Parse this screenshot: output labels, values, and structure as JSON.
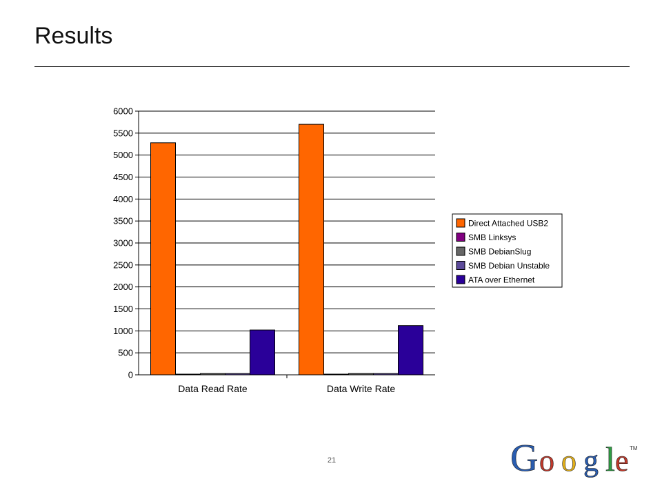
{
  "slide": {
    "title": "Results",
    "page_number": "21"
  },
  "logo": {
    "wordmark": "Google",
    "trademark": "TM",
    "letter_colors": [
      "#2a5db0",
      "#c0392b",
      "#e3b019",
      "#2a5db0",
      "#2f9e44",
      "#c0392b"
    ]
  },
  "chart_data": {
    "type": "bar",
    "categories": [
      "Data Read Rate",
      "Data Write Rate"
    ],
    "series": [
      {
        "name": "Direct Attached USB2",
        "color": "#ff6600",
        "values": [
          5280,
          5700
        ]
      },
      {
        "name": "SMB Linksys",
        "color": "#800080",
        "values": [
          8,
          8
        ]
      },
      {
        "name": "SMB DebianSlug",
        "color": "#666666",
        "values": [
          30,
          30
        ]
      },
      {
        "name": "SMB Debian Unstable",
        "color": "#5c4a9a",
        "values": [
          30,
          30
        ]
      },
      {
        "name": "ATA over Ethernet",
        "color": "#2a0099",
        "values": [
          1020,
          1120
        ]
      }
    ],
    "ylim": [
      0,
      6000
    ],
    "yticks": [
      0,
      500,
      1000,
      1500,
      2000,
      2500,
      3000,
      3500,
      4000,
      4500,
      5000,
      5500,
      6000
    ],
    "grid": true,
    "legend": "right"
  }
}
